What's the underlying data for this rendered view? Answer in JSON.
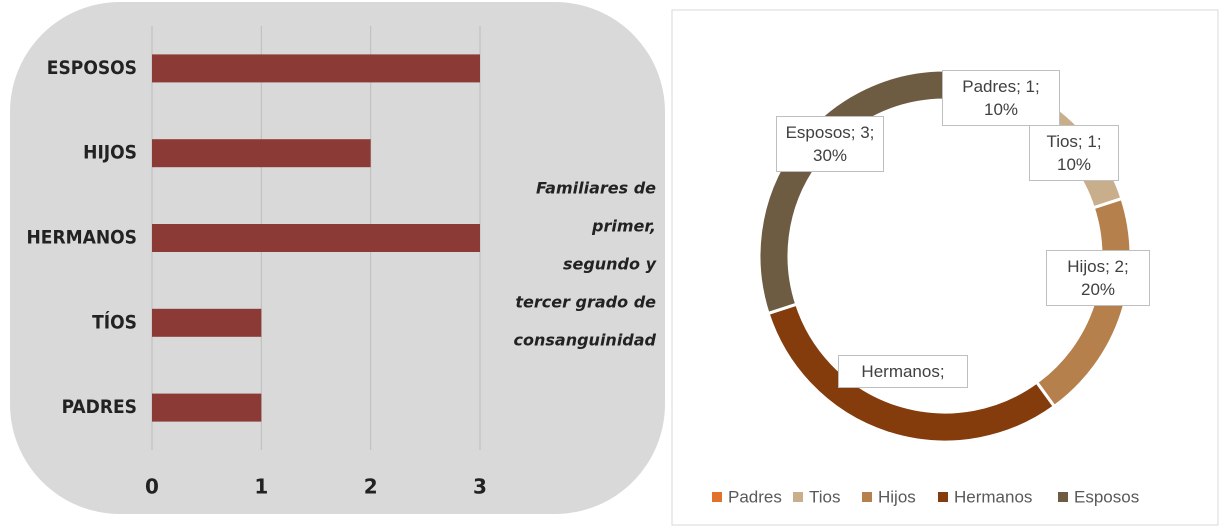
{
  "chart_data": [
    {
      "type": "bar",
      "orientation": "horizontal",
      "categories": [
        "ESPOSOS",
        "HIJOS",
        "HERMANOS",
        "TÍOS",
        "PADRES"
      ],
      "values": [
        3,
        2,
        3,
        1,
        1
      ],
      "color": "#8b3a36",
      "xlim": [
        0,
        3
      ],
      "xticks": [
        0,
        1,
        2,
        3
      ],
      "grid": true,
      "annotation": [
        "Familiares de",
        "primer,",
        "segundo y",
        "tercer grado de",
        "consanguinidad"
      ]
    },
    {
      "type": "donut",
      "categories": [
        "Padres",
        "Tios",
        "Hijos",
        "Hermanos",
        "Esposos"
      ],
      "values": [
        1,
        1,
        2,
        3,
        3
      ],
      "value_labels": [
        "Padres; 1; 10%",
        "Tios; 1; 10%",
        "Hijos; 2; 20%",
        "Hermanos;",
        "Esposos; 3; 30%"
      ],
      "colors": [
        "#e2712c",
        "#c9ae8c",
        "#b5804c",
        "#843c0c",
        "#6e5c42"
      ],
      "legend": "bottom"
    }
  ]
}
